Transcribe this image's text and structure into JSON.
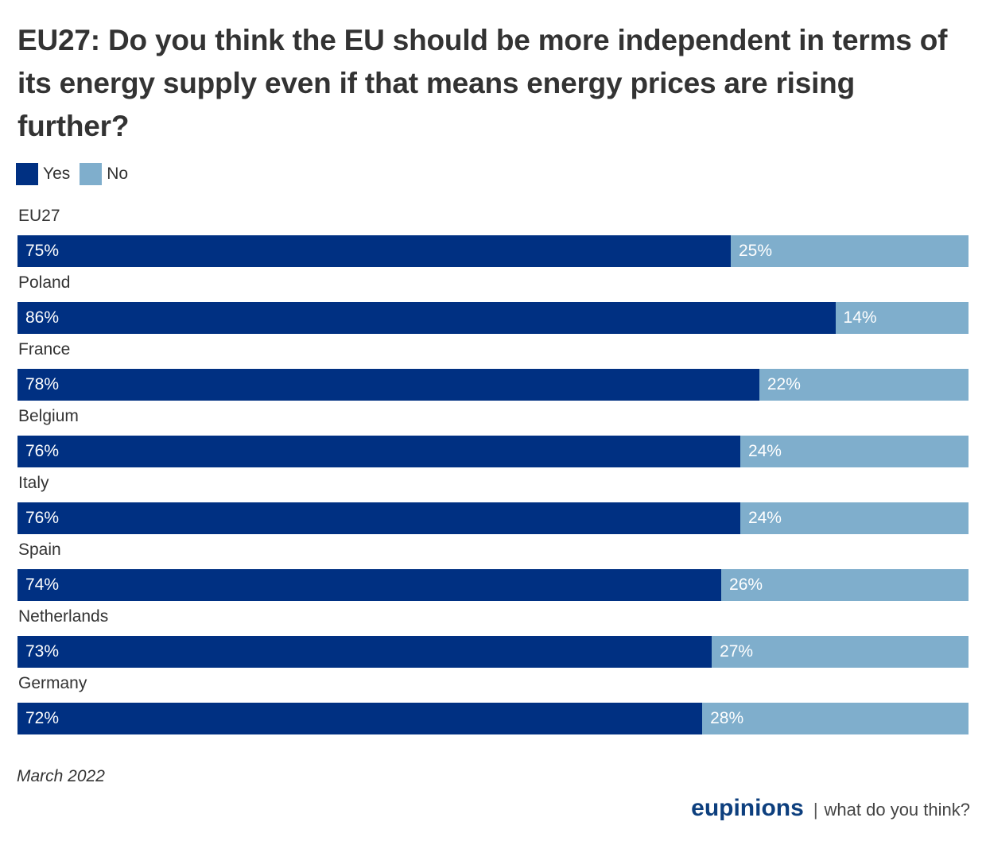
{
  "title": "EU27: Do you think the EU should be more independent in terms of its energy supply even if that means energy prices are rising further?",
  "legend": [
    {
      "label": "Yes",
      "color": "#003082"
    },
    {
      "label": "No",
      "color": "#7faecc"
    }
  ],
  "footer": {
    "date": "March 2022",
    "brand": "eupinions",
    "separator": "|",
    "tagline": "what do you think?"
  },
  "chart_data": {
    "type": "bar",
    "orientation": "horizontal",
    "stacked": true,
    "title": "EU27: Do you think the EU should be more independent in terms of its energy supply even if that means energy prices are rising further?",
    "categories": [
      "EU27",
      "Poland",
      "France",
      "Belgium",
      "Italy",
      "Spain",
      "Netherlands",
      "Germany"
    ],
    "series": [
      {
        "name": "Yes",
        "color": "#003082",
        "values": [
          75,
          86,
          78,
          76,
          76,
          74,
          73,
          72
        ]
      },
      {
        "name": "No",
        "color": "#7faecc",
        "values": [
          25,
          14,
          22,
          24,
          24,
          26,
          27,
          28
        ]
      }
    ],
    "unit": "%",
    "xlim": [
      0,
      100
    ],
    "xlabel": "",
    "ylabel": "",
    "grid": false,
    "legend_position": "top-left"
  }
}
